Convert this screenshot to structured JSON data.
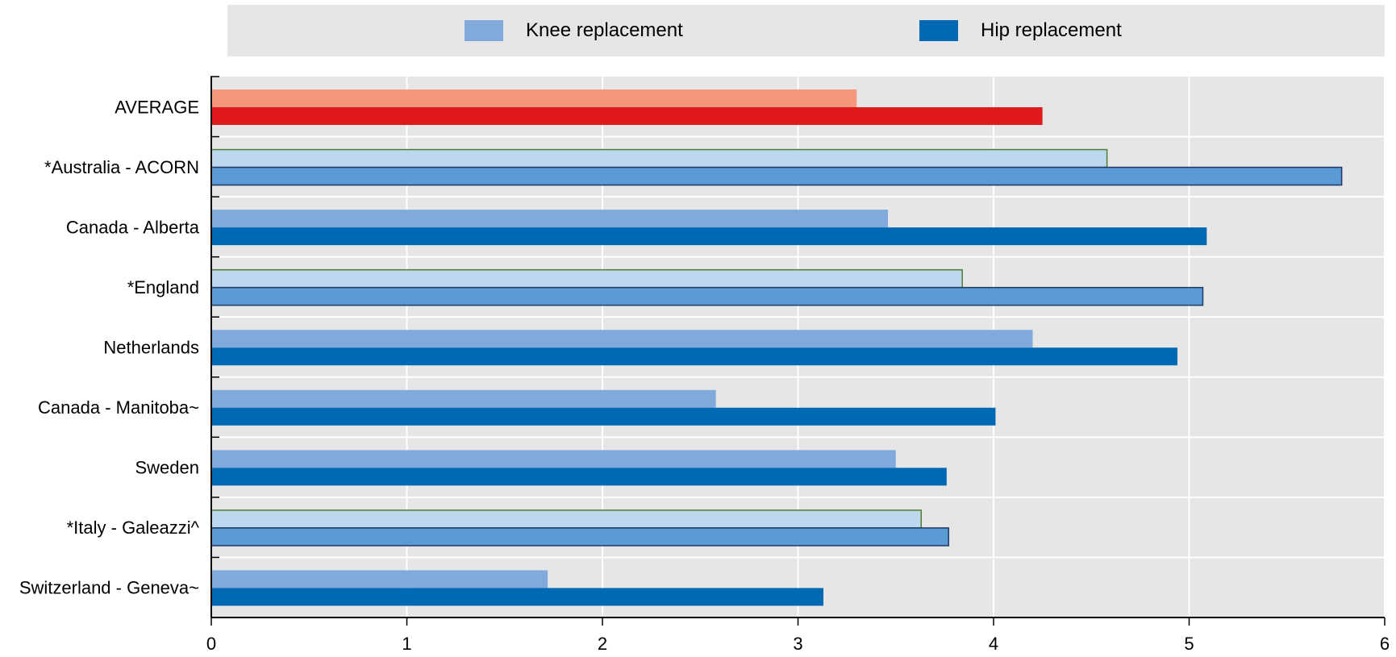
{
  "legend": {
    "knee_label": "Knee replacement",
    "hip_label": "Hip replacement",
    "knee_color": "#7faadb",
    "hip_color": "#0069b4"
  },
  "chart_data": {
    "type": "bar",
    "orientation": "horizontal",
    "categories": [
      "AVERAGE",
      "*Australia - ACORN",
      "Canada - Alberta",
      "*England",
      "Netherlands",
      "Canada - Manitoba~",
      "Sweden",
      "*Italy - Galeazzi^",
      "Switzerland - Geneva~"
    ],
    "series": [
      {
        "name": "Knee replacement",
        "values": [
          3.3,
          4.58,
          3.46,
          3.84,
          4.2,
          2.58,
          3.5,
          3.63,
          1.72
        ]
      },
      {
        "name": "Hip replacement",
        "values": [
          4.25,
          5.78,
          5.09,
          5.07,
          4.94,
          4.01,
          3.76,
          3.77,
          3.13
        ]
      }
    ],
    "xlim": [
      0,
      6
    ],
    "xticks": [
      0,
      1,
      2,
      3,
      4,
      5,
      6
    ],
    "grid": true,
    "legend_position": "top",
    "highlight": {
      "AVERAGE": {
        "knee": "#f4977a",
        "hip": "#e0191d"
      }
    },
    "starred_style": {
      "knee_fill": "#bdd7ee",
      "knee_stroke": "#4f7f2f",
      "hip_fill": "#5b9bd5",
      "hip_stroke": "#1f3864"
    },
    "plot_background": "#e6e6e6"
  }
}
